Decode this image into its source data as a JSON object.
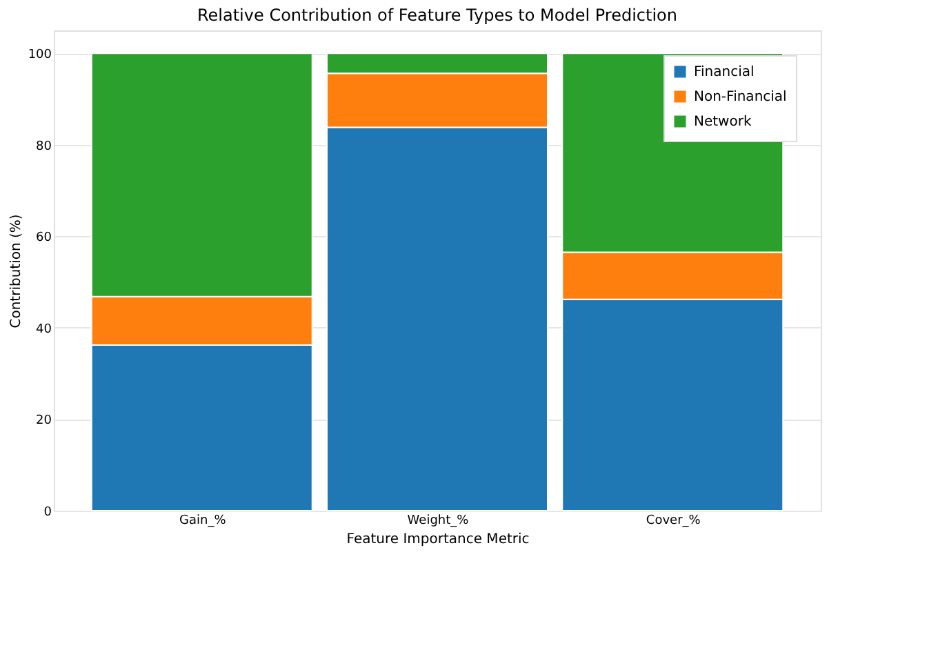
{
  "chart_data": {
    "type": "bar",
    "stacked": true,
    "title": "Relative Contribution of Feature Types to Model Prediction",
    "xlabel": "Feature Importance Metric",
    "ylabel": "Contribution (%)",
    "categories": [
      "Gain_%",
      "Weight_%",
      "Cover_%"
    ],
    "series": [
      {
        "name": "Financial",
        "color": "#1f77b4",
        "values": [
          36.2,
          83.8,
          46.2
        ]
      },
      {
        "name": "Non-Financial",
        "color": "#ff7f0e",
        "values": [
          10.6,
          11.8,
          10.3
        ]
      },
      {
        "name": "Network",
        "color": "#2ca02c",
        "values": [
          53.2,
          4.4,
          43.5
        ]
      }
    ],
    "ylim": [
      0,
      105
    ],
    "yticks": [
      0,
      20,
      40,
      60,
      80,
      100
    ],
    "grid": "y",
    "legend": "top right"
  }
}
